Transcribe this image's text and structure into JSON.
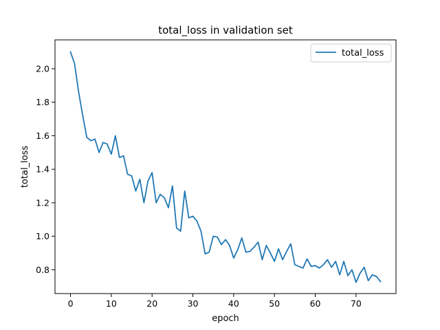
{
  "chart_data": {
    "type": "line",
    "title": "total_loss in validation set",
    "xlabel": "epoch",
    "ylabel": "total_loss",
    "xlim": [
      -3.8,
      79.8
    ],
    "ylim": [
      0.658,
      2.172
    ],
    "xticks": [
      0,
      10,
      20,
      30,
      40,
      50,
      60,
      70
    ],
    "yticks": [
      0.8,
      1.0,
      1.2,
      1.4,
      1.6,
      1.8,
      2.0
    ],
    "ytick_labels": [
      "0.8",
      "1.0",
      "1.2",
      "1.4",
      "1.6",
      "1.8",
      "2.0"
    ],
    "grid": false,
    "legend": "top-right",
    "colors": {
      "series": "#1f77b4"
    },
    "series": [
      {
        "name": "total_loss",
        "x": [
          0,
          1,
          2,
          3,
          4,
          5,
          6,
          7,
          8,
          9,
          10,
          11,
          12,
          13,
          14,
          15,
          16,
          17,
          18,
          19,
          20,
          21,
          22,
          23,
          24,
          25,
          26,
          27,
          28,
          29,
          30,
          31,
          32,
          33,
          34,
          35,
          36,
          37,
          38,
          39,
          40,
          41,
          42,
          43,
          44,
          45,
          46,
          47,
          48,
          49,
          50,
          51,
          52,
          53,
          54,
          55,
          56,
          57,
          58,
          59,
          60,
          61,
          62,
          63,
          64,
          65,
          66,
          67,
          68,
          69,
          70,
          71,
          72,
          73,
          74,
          75,
          76
        ],
        "values": [
          2.1,
          2.03,
          1.86,
          1.72,
          1.59,
          1.57,
          1.58,
          1.5,
          1.56,
          1.55,
          1.49,
          1.6,
          1.47,
          1.48,
          1.37,
          1.36,
          1.27,
          1.34,
          1.2,
          1.33,
          1.38,
          1.2,
          1.25,
          1.23,
          1.17,
          1.3,
          1.05,
          1.03,
          1.27,
          1.11,
          1.12,
          1.09,
          1.03,
          0.895,
          0.905,
          1.0,
          0.995,
          0.95,
          0.98,
          0.945,
          0.87,
          0.92,
          0.99,
          0.905,
          0.91,
          0.935,
          0.965,
          0.86,
          0.945,
          0.9,
          0.85,
          0.925,
          0.86,
          0.91,
          0.955,
          0.83,
          0.82,
          0.81,
          0.865,
          0.82,
          0.825,
          0.81,
          0.83,
          0.86,
          0.815,
          0.85,
          0.77,
          0.85,
          0.765,
          0.8,
          0.725,
          0.78,
          0.815,
          0.735,
          0.77,
          0.76,
          0.73
        ]
      }
    ]
  }
}
